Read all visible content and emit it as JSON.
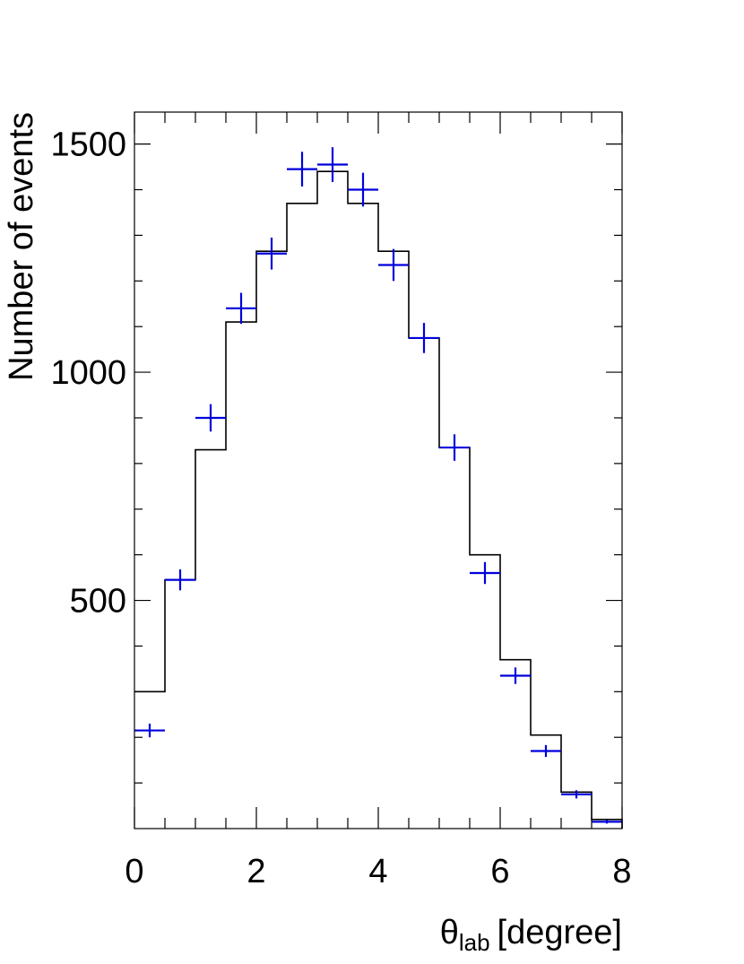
{
  "chart_data": {
    "type": "histogram",
    "xlabel": {
      "symbol": "θ",
      "subscript": "lab",
      "unit": "[degree]"
    },
    "ylabel": "Number of events",
    "xlim": [
      0,
      8
    ],
    "ylim": [
      0,
      1570
    ],
    "x_ticks": [
      "0",
      "2",
      "4",
      "6",
      "8"
    ],
    "x_tick_values": [
      0,
      2,
      4,
      6,
      8
    ],
    "y_ticks": [
      "500",
      "1000",
      "1500"
    ],
    "y_tick_values": [
      500,
      1000,
      1500
    ],
    "bin_edges": [
      0,
      0.5,
      1,
      1.5,
      2,
      2.5,
      3,
      3.5,
      4,
      4.5,
      5,
      5.5,
      6,
      6.5,
      7,
      7.5,
      8
    ],
    "series": [
      {
        "kind": "step-histogram",
        "color": "#000000",
        "values": [
          300,
          545,
          830,
          1110,
          1265,
          1370,
          1440,
          1370,
          1265,
          1075,
          835,
          600,
          370,
          205,
          80,
          20
        ]
      },
      {
        "kind": "points-with-errors",
        "color": "#0000dd",
        "x": [
          0.25,
          0.75,
          1.25,
          1.75,
          2.25,
          2.75,
          3.25,
          3.75,
          4.25,
          4.75,
          5.25,
          5.75,
          6.25,
          6.75,
          7.25,
          7.75
        ],
        "values": [
          215,
          545,
          900,
          1140,
          1260,
          1445,
          1455,
          1400,
          1235,
          1075,
          835,
          560,
          335,
          170,
          75,
          15
        ],
        "errors": [
          15,
          23,
          30,
          34,
          35,
          38,
          38,
          37,
          35,
          33,
          29,
          24,
          18,
          13,
          9,
          4
        ]
      }
    ]
  }
}
